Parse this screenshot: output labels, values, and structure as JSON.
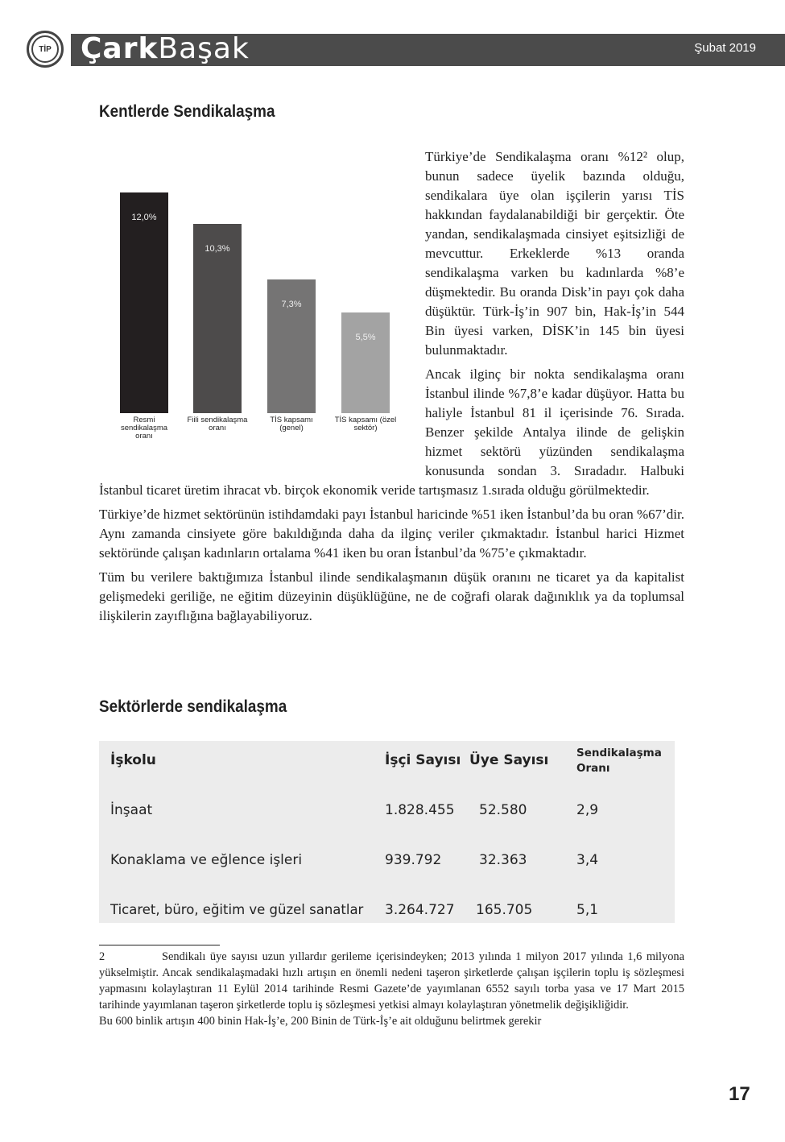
{
  "header": {
    "logo_text": "TİP",
    "brand_part1": "Çark",
    "brand_part2": "Başak",
    "date": "Şubat 2019"
  },
  "section1": {
    "title": "Kentlerde Sendikalaşma",
    "paragraphs": [
      "Türkiye’de Sendikalaşma oranı %12² olup, bunun sadece üyelik bazında olduğu, sendikalara üye olan işçilerin yarısı TİS hakkından faydalanabildiği bir gerçektir. Öte yandan, sendikalaşmada cinsiyet eşitsizliği de mevcuttur. Erkeklerde %13 oranda sendikalaşma varken bu kadınlarda %8’e düşmektedir. Bu oranda Disk’in payı çok daha düşüktür. Türk-İş’in 907 bin, Hak-İş’in 544 Bin üyesi varken, DİSK’in 145 bin üyesi bulunmaktadır.",
      "Ancak ilginç bir nokta sendikalaşma oranı İstanbul ilinde %7,8’e kadar düşüyor. Hatta bu haliyle İstanbul 81 il içerisinde 76. Sırada. Benzer şekilde Antalya ilinde de gelişkin hizmet sektörü yüzünden sendikalaşma konusunda sondan 3. Sıradadır. Halbuki İstanbul ticaret üretim ihracat vb. birçok ekonomik veride tartışmasız 1.sırada olduğu görülmektedir.",
      "Türkiye’de hizmet sektörünün istihdamdaki payı İstanbul haricinde %51 iken İstanbul’da bu oran %67’dir. Aynı zamanda cinsiyete göre bakıldığında daha da ilginç veriler çıkmaktadır. İstanbul harici Hizmet sektöründe çalışan kadınların ortalama %41 iken bu oran İstanbul’da %75’e çıkmaktadır.",
      "Tüm bu verilere baktığımıza İstanbul ilinde sendikalaşmanın düşük oranını ne ticaret ya da kapitalist gelişmedeki geriliğe, ne eğitim düzeyinin düşüklüğüne, ne de coğrafi olarak dağınıklık ya da toplumsal ilişkilerin zayıflığına bağlayabiliyoruz."
    ]
  },
  "chart_data": {
    "type": "bar",
    "categories": [
      "Resmi sendikalaşma oranı",
      "Fiili sendikalaşma oranı",
      "TİS kapsamı (genel)",
      "TİS kapsamı (özel sektör)"
    ],
    "values": [
      12.0,
      10.3,
      7.3,
      5.5
    ],
    "data_labels": [
      "12,0%",
      "10,3%",
      "7,3%",
      "5,5%"
    ],
    "colors": [
      "#231f20",
      "#4d4b4b",
      "#757474",
      "#a3a3a3"
    ],
    "ylim": [
      0,
      12
    ],
    "grid": false,
    "legend": "none"
  },
  "section2": {
    "title": "Sektörlerde sendikalaşma",
    "table": {
      "headers": [
        "İşkolu",
        "İşçi Sayısı",
        "Üye Sayısı",
        "Sendikalaşma Oranı"
      ],
      "rows": [
        [
          "İnşaat",
          "1.828.455",
          "52.580",
          "2,9"
        ],
        [
          "Konaklama ve eğlence işleri",
          "939.792",
          "32.363",
          "3,4"
        ],
        [
          "Ticaret, büro, eğitim ve güzel sanatlar",
          "3.264.727",
          "165.705",
          "5,1"
        ]
      ]
    }
  },
  "footnote": {
    "number": "2",
    "text": "Sendikalı üye sayısı uzun yıllardır gerileme içerisindeyken; 2013 yılında 1 milyon 2017 yılında 1,6 milyona yükselmiştir. Ancak sendikalaşmadaki hızlı artışın en önemli nedeni taşeron şirketlerde çalışan işçilerin toplu iş sözleşmesi yapmasını kolaylaştıran 11 Eylül 2014 tarihinde Resmi Gazete’de yayımlanan 6552 sayılı torba yasa ve 17 Mart 2015 tarihinde yayımlanan taşeron şirketlerde toplu iş sözleşmesi yetkisi almayı kolaylaştıran yönetmelik değişikliğidir.",
    "extra": "Bu 600 binlik artışın 400 binin Hak-İş’e, 200 Binin de Türk-İş’e ait olduğunu belirtmek gerekir"
  },
  "page_number": "17"
}
